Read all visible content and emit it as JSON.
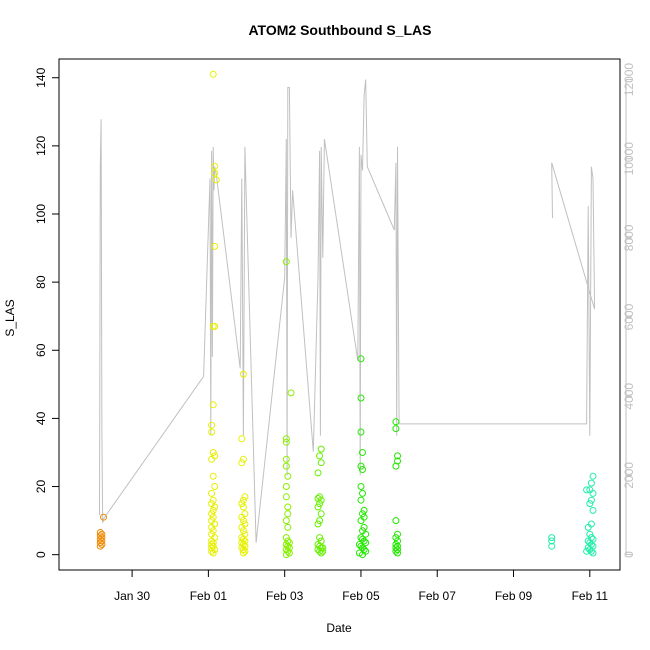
{
  "chart_data": {
    "type": "scatter",
    "title": "ATOM2 Southbound S_LAS",
    "xlabel": "Date",
    "ylabel": "S_LAS",
    "x_ticks": [
      "Jan 30",
      "Feb 01",
      "Feb 03",
      "Feb 05",
      "Feb 07",
      "Feb 09",
      "Feb 11"
    ],
    "x_tick_dates": [
      "2018-01-30",
      "2018-02-01",
      "2018-02-03",
      "2018-02-05",
      "2018-02-07",
      "2018-02-09",
      "2018-02-11"
    ],
    "xlim": [
      "2018-01-28T02:00",
      "2018-02-11T19:00"
    ],
    "y_ticks": [
      0,
      20,
      40,
      60,
      80,
      100,
      120,
      140
    ],
    "ylim": [
      -4.5,
      145.5
    ],
    "y2_ticks": [
      0,
      2000,
      4000,
      6000,
      8000,
      10000,
      12000
    ],
    "y2lim": [
      -390,
      12520
    ],
    "y2_color": "#c0c0c0",
    "grid": false,
    "legend": "none",
    "series": [
      {
        "kind": "points",
        "color": "#ee8800",
        "points": [
          [
            "2018-01-29T04:00",
            6.5
          ],
          [
            "2018-01-29T04:00",
            5.5
          ],
          [
            "2018-01-29T04:00",
            4.5
          ],
          [
            "2018-01-29T04:00",
            3.5
          ],
          [
            "2018-01-29T04:00",
            2.5
          ],
          [
            "2018-01-29T05:00",
            6
          ],
          [
            "2018-01-29T05:00",
            5
          ],
          [
            "2018-01-29T05:00",
            4
          ],
          [
            "2018-01-29T05:00",
            3
          ],
          [
            "2018-01-29T06:00",
            11
          ]
        ]
      },
      {
        "kind": "points",
        "color": "#e6f000",
        "points": [
          [
            "2018-02-01T03:00",
            141
          ],
          [
            "2018-02-01T04:00",
            114
          ],
          [
            "2018-02-01T04:00",
            112
          ],
          [
            "2018-02-01T05:00",
            110
          ],
          [
            "2018-02-01T04:00",
            90.5
          ],
          [
            "2018-02-01T03:00",
            67
          ],
          [
            "2018-02-01T04:00",
            67
          ],
          [
            "2018-02-01T03:00",
            44
          ],
          [
            "2018-02-01T02:00",
            38
          ],
          [
            "2018-02-01T02:00",
            36
          ],
          [
            "2018-02-01T03:00",
            30
          ],
          [
            "2018-02-01T04:00",
            29
          ],
          [
            "2018-02-01T02:00",
            28
          ],
          [
            "2018-02-01T03:00",
            23
          ],
          [
            "2018-02-01T04:00",
            20
          ],
          [
            "2018-02-01T02:00",
            18
          ],
          [
            "2018-02-01T03:00",
            16
          ],
          [
            "2018-02-01T02:00",
            15
          ],
          [
            "2018-02-01T04:00",
            14
          ],
          [
            "2018-02-01T03:00",
            13
          ],
          [
            "2018-02-01T02:00",
            12
          ],
          [
            "2018-02-01T03:00",
            11
          ],
          [
            "2018-02-01T02:00",
            10
          ],
          [
            "2018-02-01T04:00",
            9
          ],
          [
            "2018-02-01T02:00",
            8
          ],
          [
            "2018-02-01T03:00",
            7
          ],
          [
            "2018-02-01T02:00",
            6
          ],
          [
            "2018-02-01T04:00",
            5
          ],
          [
            "2018-02-01T02:00",
            4
          ],
          [
            "2018-02-01T03:00",
            3.5
          ],
          [
            "2018-02-01T02:00",
            3
          ],
          [
            "2018-02-01T03:00",
            2.5
          ],
          [
            "2018-02-01T02:00",
            2
          ],
          [
            "2018-02-01T04:00",
            1.5
          ],
          [
            "2018-02-01T02:00",
            1
          ],
          [
            "2018-02-01T03:00",
            0.5
          ],
          [
            "2018-02-01T22:00",
            53
          ],
          [
            "2018-02-01T21:00",
            34
          ],
          [
            "2018-02-01T22:00",
            28
          ],
          [
            "2018-02-01T21:00",
            27
          ],
          [
            "2018-02-01T23:00",
            17
          ],
          [
            "2018-02-01T22:00",
            16
          ],
          [
            "2018-02-01T21:00",
            15
          ],
          [
            "2018-02-01T22:00",
            14
          ],
          [
            "2018-02-01T23:00",
            12
          ],
          [
            "2018-02-01T21:00",
            11
          ],
          [
            "2018-02-01T22:00",
            10
          ],
          [
            "2018-02-01T23:00",
            9
          ],
          [
            "2018-02-01T21:00",
            8
          ],
          [
            "2018-02-01T22:00",
            7
          ],
          [
            "2018-02-01T23:00",
            6
          ],
          [
            "2018-02-01T21:00",
            5
          ],
          [
            "2018-02-01T22:00",
            4.5
          ],
          [
            "2018-02-01T23:00",
            4
          ],
          [
            "2018-02-01T21:00",
            3.5
          ],
          [
            "2018-02-01T22:00",
            3
          ],
          [
            "2018-02-01T23:00",
            2.5
          ],
          [
            "2018-02-01T21:00",
            2
          ],
          [
            "2018-02-01T22:00",
            1.5
          ],
          [
            "2018-02-01T23:00",
            1
          ],
          [
            "2018-02-01T22:00",
            0.5
          ]
        ]
      },
      {
        "kind": "points",
        "color": "#88f000",
        "points": [
          [
            "2018-02-03T01:00",
            86
          ],
          [
            "2018-02-03T04:00",
            47.5
          ],
          [
            "2018-02-03T01:00",
            34
          ],
          [
            "2018-02-03T01:00",
            33
          ],
          [
            "2018-02-03T01:00",
            28
          ],
          [
            "2018-02-03T01:00",
            26
          ],
          [
            "2018-02-03T02:00",
            23
          ],
          [
            "2018-02-03T01:00",
            20
          ],
          [
            "2018-02-03T01:00",
            17
          ],
          [
            "2018-02-03T02:00",
            14
          ],
          [
            "2018-02-03T02:00",
            12
          ],
          [
            "2018-02-03T01:00",
            10
          ],
          [
            "2018-02-03T02:00",
            8
          ],
          [
            "2018-02-03T01:00",
            5
          ],
          [
            "2018-02-03T02:00",
            4
          ],
          [
            "2018-02-03T03:00",
            3.5
          ],
          [
            "2018-02-03T01:00",
            3
          ],
          [
            "2018-02-03T02:00",
            2.5
          ],
          [
            "2018-02-03T03:00",
            2
          ],
          [
            "2018-02-03T01:00",
            1.5
          ],
          [
            "2018-02-03T02:00",
            1
          ],
          [
            "2018-02-03T03:00",
            0.5
          ],
          [
            "2018-02-03T01:00",
            0
          ]
        ]
      },
      {
        "kind": "points",
        "color": "#66f000",
        "points": [
          [
            "2018-02-03T23:00",
            31
          ],
          [
            "2018-02-03T22:00",
            29
          ],
          [
            "2018-02-03T23:00",
            27
          ],
          [
            "2018-02-03T21:00",
            24
          ],
          [
            "2018-02-03T22:00",
            17
          ],
          [
            "2018-02-03T21:00",
            16.5
          ],
          [
            "2018-02-03T23:00",
            16
          ],
          [
            "2018-02-03T22:00",
            15
          ],
          [
            "2018-02-03T21:00",
            14
          ],
          [
            "2018-02-03T23:00",
            12
          ],
          [
            "2018-02-03T22:00",
            10
          ],
          [
            "2018-02-03T21:00",
            9
          ],
          [
            "2018-02-03T22:00",
            5
          ],
          [
            "2018-02-03T23:00",
            4
          ],
          [
            "2018-02-03T21:00",
            3
          ],
          [
            "2018-02-03T22:00",
            2.5
          ],
          [
            "2018-02-03T23:00",
            2
          ],
          [
            "2018-02-03T21:00",
            1.5
          ],
          [
            "2018-02-03T22:00",
            1
          ],
          [
            "2018-02-03T23:00",
            0.5
          ],
          [
            "2018-02-04T00:00",
            1
          ],
          [
            "2018-02-04T00:00",
            2
          ]
        ]
      },
      {
        "kind": "points",
        "color": "#22e800",
        "points": [
          [
            "2018-02-05T00:00",
            57.5
          ],
          [
            "2018-02-05T00:00",
            46
          ],
          [
            "2018-02-05T00:00",
            36
          ],
          [
            "2018-02-05T01:00",
            30
          ],
          [
            "2018-02-05T00:00",
            26
          ],
          [
            "2018-02-05T01:00",
            25
          ],
          [
            "2018-02-05T00:00",
            20
          ],
          [
            "2018-02-05T01:00",
            18
          ],
          [
            "2018-02-05T00:00",
            16
          ],
          [
            "2018-02-05T02:00",
            13
          ],
          [
            "2018-02-05T01:00",
            12
          ],
          [
            "2018-02-05T02:00",
            11
          ],
          [
            "2018-02-05T00:00",
            10
          ],
          [
            "2018-02-05T02:00",
            8
          ],
          [
            "2018-02-05T01:00",
            7
          ],
          [
            "2018-02-05T03:00",
            6
          ],
          [
            "2018-02-05T00:00",
            5
          ],
          [
            "2018-02-05T01:00",
            4.5
          ],
          [
            "2018-02-05T02:00",
            4
          ],
          [
            "2018-02-05T03:00",
            3.5
          ],
          [
            "2018-02-04T23:00",
            3
          ],
          [
            "2018-02-05T00:00",
            2.5
          ],
          [
            "2018-02-05T01:00",
            2
          ],
          [
            "2018-02-05T02:00",
            1.5
          ],
          [
            "2018-02-05T03:00",
            1
          ],
          [
            "2018-02-04T23:00",
            0.5
          ],
          [
            "2018-02-05T01:00",
            0
          ],
          [
            "2018-02-05T22:00",
            39
          ],
          [
            "2018-02-05T22:00",
            37
          ],
          [
            "2018-02-05T23:00",
            29
          ],
          [
            "2018-02-05T23:00",
            27.5
          ],
          [
            "2018-02-05T22:00",
            26
          ],
          [
            "2018-02-05T22:00",
            10
          ],
          [
            "2018-02-05T23:00",
            6
          ],
          [
            "2018-02-05T22:00",
            5
          ],
          [
            "2018-02-05T23:00",
            4
          ],
          [
            "2018-02-05T22:00",
            3
          ],
          [
            "2018-02-05T23:00",
            2.5
          ],
          [
            "2018-02-05T22:00",
            2
          ],
          [
            "2018-02-05T23:00",
            1.5
          ],
          [
            "2018-02-05T22:00",
            1
          ],
          [
            "2018-02-05T23:00",
            0.5
          ]
        ]
      },
      {
        "kind": "points",
        "color": "#22eeaa",
        "points": [
          [
            "2018-02-10T00:00",
            5
          ],
          [
            "2018-02-10T00:00",
            4
          ],
          [
            "2018-02-10T00:00",
            2.5
          ],
          [
            "2018-02-10T22:00",
            19
          ],
          [
            "2018-02-11T02:00",
            23
          ],
          [
            "2018-02-11T01:00",
            21
          ],
          [
            "2018-02-11T00:00",
            19
          ],
          [
            "2018-02-11T02:00",
            18
          ],
          [
            "2018-02-11T01:00",
            16
          ],
          [
            "2018-02-11T00:00",
            15
          ],
          [
            "2018-02-11T02:00",
            13
          ],
          [
            "2018-02-11T01:00",
            9
          ],
          [
            "2018-02-10T23:00",
            8
          ],
          [
            "2018-02-11T00:00",
            6
          ],
          [
            "2018-02-11T01:00",
            5
          ],
          [
            "2018-02-11T02:00",
            4.5
          ],
          [
            "2018-02-10T23:00",
            4
          ],
          [
            "2018-02-11T00:00",
            3.5
          ],
          [
            "2018-02-11T01:00",
            3
          ],
          [
            "2018-02-11T02:00",
            2.5
          ],
          [
            "2018-02-10T23:00",
            2
          ],
          [
            "2018-02-11T00:00",
            1.5
          ],
          [
            "2018-02-11T01:00",
            1
          ],
          [
            "2018-02-11T02:00",
            0.5
          ],
          [
            "2018-02-10T22:00",
            1
          ]
        ]
      },
      {
        "kind": "line",
        "axis": "right",
        "color": "#c0c0c0",
        "points": [
          [
            "2018-01-29T03:30",
            1000
          ],
          [
            "2018-01-29T04:00",
            9800
          ],
          [
            "2018-01-29T04:30",
            11000
          ],
          [
            "2018-01-29T05:00",
            3000
          ],
          [
            "2018-01-29T05:30",
            800
          ],
          [
            "2018-01-29T06:00",
            900
          ],
          [
            "2018-01-31T21:00",
            4500
          ],
          [
            "2018-02-01T01:00",
            9500
          ],
          [
            "2018-02-01T01:30",
            3000
          ],
          [
            "2018-02-01T02:00",
            10200
          ],
          [
            "2018-02-01T02:30",
            5000
          ],
          [
            "2018-02-01T03:00",
            10300
          ],
          [
            "2018-02-01T03:30",
            9200
          ],
          [
            "2018-02-01T04:00",
            9800
          ],
          [
            "2018-02-01T05:00",
            9600
          ],
          [
            "2018-02-01T20:00",
            4700
          ],
          [
            "2018-02-01T21:00",
            9500
          ],
          [
            "2018-02-01T22:00",
            3000
          ],
          [
            "2018-02-01T23:00",
            10300
          ],
          [
            "2018-02-02T00:00",
            8800
          ],
          [
            "2018-02-02T06:00",
            300
          ],
          [
            "2018-02-03T00:00",
            7000
          ],
          [
            "2018-02-03T01:00",
            10500
          ],
          [
            "2018-02-03T01:30",
            2000
          ],
          [
            "2018-02-03T02:00",
            11800
          ],
          [
            "2018-02-03T03:00",
            11800
          ],
          [
            "2018-02-03T04:00",
            8000
          ],
          [
            "2018-02-03T05:00",
            9200
          ],
          [
            "2018-02-03T18:00",
            2600
          ],
          [
            "2018-02-03T21:00",
            7000
          ],
          [
            "2018-02-03T22:00",
            10200
          ],
          [
            "2018-02-03T22:30",
            3000
          ],
          [
            "2018-02-03T23:00",
            10300
          ],
          [
            "2018-02-04T00:00",
            7500
          ],
          [
            "2018-02-04T01:00",
            10500
          ],
          [
            "2018-02-04T22:00",
            4900
          ],
          [
            "2018-02-04T23:00",
            10300
          ],
          [
            "2018-02-04T23:30",
            2000
          ],
          [
            "2018-02-05T00:00",
            10100
          ],
          [
            "2018-02-05T01:00",
            9700
          ],
          [
            "2018-02-05T02:00",
            11600
          ],
          [
            "2018-02-05T03:00",
            12000
          ],
          [
            "2018-02-05T04:00",
            9800
          ],
          [
            "2018-02-05T21:00",
            8200
          ],
          [
            "2018-02-05T22:00",
            9900
          ],
          [
            "2018-02-05T22:30",
            3000
          ],
          [
            "2018-02-05T23:00",
            10300
          ],
          [
            "2018-02-06T00:00",
            3300
          ],
          [
            "2018-02-10T22:00",
            3300
          ],
          [
            "2018-02-10T23:00",
            8800
          ],
          [
            "2018-02-11T00:00",
            3000
          ],
          [
            "2018-02-11T01:00",
            9800
          ],
          [
            "2018-02-11T02:00",
            9500
          ],
          [
            "2018-02-11T03:00",
            6200
          ],
          [
            "2018-02-10T00:00",
            9900
          ],
          [
            "2018-02-10T00:30",
            8500
          ]
        ]
      }
    ]
  }
}
